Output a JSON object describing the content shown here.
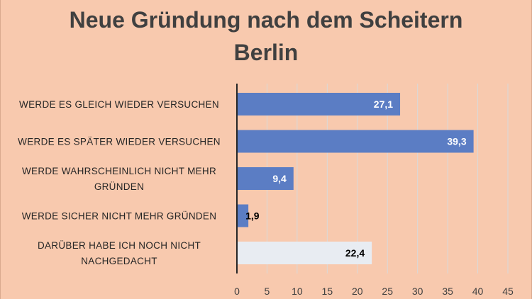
{
  "chart_data": {
    "type": "bar",
    "orientation": "horizontal",
    "title_lines": [
      "Neue Gründung nach dem Scheitern",
      "Berlin"
    ],
    "categories": [
      [
        "WERDE ES GLEICH WIEDER VERSUCHEN"
      ],
      [
        "WERDE ES SPÄTER WIEDER VERSUCHEN"
      ],
      [
        "WERDE WAHRSCHEINLICH NICHT MEHR",
        "GRÜNDEN"
      ],
      [
        "WERDE SICHER NICHT MEHR GRÜNDEN"
      ],
      [
        "DARÜBER HABE ICH NOCH NICHT",
        "NACHGEDACHT"
      ]
    ],
    "values": [
      27.1,
      39.3,
      9.4,
      1.9,
      22.4
    ],
    "data_labels": [
      "27,1",
      "39,3",
      "9,4",
      "1,9",
      "22,4"
    ],
    "bar_colors": [
      "#5B7DC4",
      "#5B7DC4",
      "#5B7DC4",
      "#5B7DC4",
      "#E8ECF2"
    ],
    "data_label_colors": [
      "#FFFFFF",
      "#FFFFFF",
      "#FFFFFF",
      "#000000",
      "#000000"
    ],
    "xlim": [
      0,
      45
    ],
    "xticks": [
      0,
      5,
      10,
      15,
      20,
      25,
      30,
      35,
      40,
      45
    ],
    "xtick_labels": [
      "0",
      "5",
      "10",
      "15",
      "20",
      "25",
      "30",
      "35",
      "40",
      "45"
    ],
    "grid": "vertical",
    "grid_color": "#D9D9D9",
    "legend": "none"
  }
}
